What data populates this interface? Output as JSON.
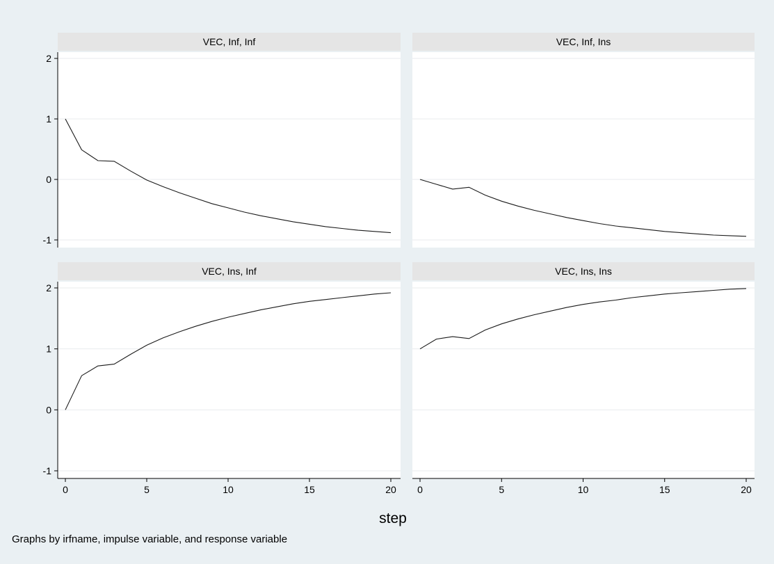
{
  "chart_data": {
    "type": "line",
    "layout": "2x2 small multiples",
    "xlabel": "step",
    "note": "Graphs by irfname, impulse variable, and response variable",
    "xlim": [
      0,
      20
    ],
    "ylim": [
      -1,
      2
    ],
    "xticks": [
      0,
      5,
      10,
      15,
      20
    ],
    "yticks": [
      -1,
      0,
      1,
      2
    ],
    "grid": true,
    "line_color": "#1a1a1a",
    "panel_header_color": "#e5e5e5",
    "background_color": "#eaf0f3",
    "x": [
      0,
      1,
      2,
      3,
      4,
      5,
      6,
      7,
      8,
      9,
      10,
      11,
      12,
      13,
      14,
      15,
      16,
      17,
      18,
      19,
      20
    ],
    "panels": [
      {
        "title": "VEC, Inf, Inf",
        "values": [
          1.0,
          0.49,
          0.31,
          0.3,
          0.14,
          -0.01,
          -0.12,
          -0.22,
          -0.31,
          -0.4,
          -0.47,
          -0.54,
          -0.6,
          -0.65,
          -0.7,
          -0.74,
          -0.78,
          -0.81,
          -0.84,
          -0.86,
          -0.88
        ]
      },
      {
        "title": "VEC, Inf, Ins",
        "values": [
          0.0,
          -0.08,
          -0.16,
          -0.13,
          -0.26,
          -0.36,
          -0.44,
          -0.51,
          -0.57,
          -0.63,
          -0.68,
          -0.73,
          -0.77,
          -0.8,
          -0.83,
          -0.86,
          -0.88,
          -0.9,
          -0.92,
          -0.93,
          -0.94
        ]
      },
      {
        "title": "VEC, Ins, Inf",
        "values": [
          0.0,
          0.56,
          0.72,
          0.75,
          0.91,
          1.06,
          1.18,
          1.28,
          1.37,
          1.45,
          1.52,
          1.58,
          1.64,
          1.69,
          1.74,
          1.78,
          1.81,
          1.84,
          1.87,
          1.9,
          1.92
        ]
      },
      {
        "title": "VEC, Ins, Ins",
        "values": [
          1.0,
          1.16,
          1.2,
          1.17,
          1.31,
          1.41,
          1.49,
          1.56,
          1.62,
          1.68,
          1.73,
          1.77,
          1.8,
          1.84,
          1.87,
          1.9,
          1.92,
          1.94,
          1.96,
          1.98,
          1.99
        ]
      }
    ]
  }
}
